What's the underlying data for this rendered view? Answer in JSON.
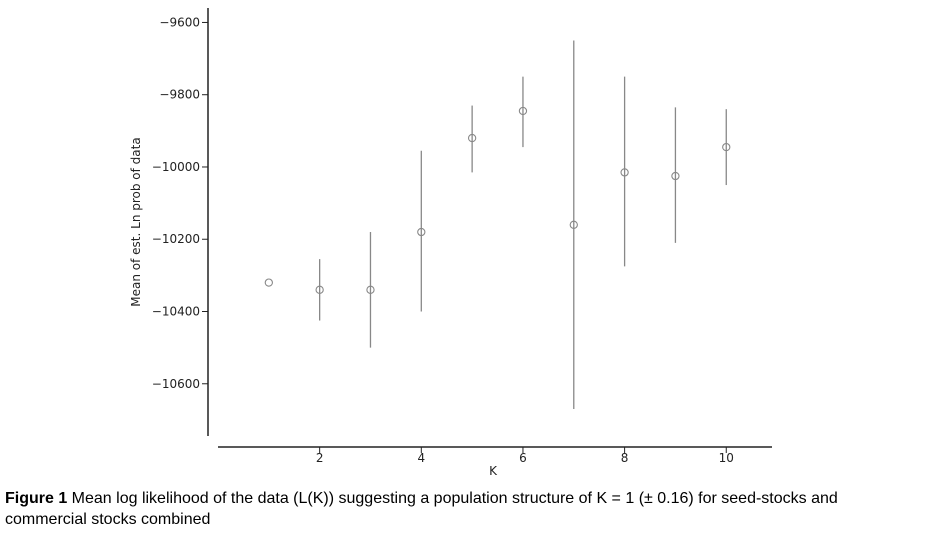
{
  "chart_data": {
    "type": "scatter",
    "x": [
      1,
      2,
      3,
      4,
      5,
      6,
      7,
      8,
      9,
      10
    ],
    "y": [
      -10320,
      -10340,
      -10340,
      -10180,
      -9920,
      -9845,
      -10160,
      -10015,
      -10025,
      -9945
    ],
    "error_low": [
      -10320,
      -10425,
      -10500,
      -10400,
      -10015,
      -9945,
      -10670,
      -10275,
      -10210,
      -10050
    ],
    "error_high": [
      -10320,
      -10255,
      -10180,
      -9955,
      -9830,
      -9750,
      -9650,
      -9750,
      -9835,
      -9840
    ],
    "xlabel": "K",
    "ylabel": "Mean of est. Ln prob of data",
    "xlim": [
      0.0,
      10.9
    ],
    "ylim": [
      -10775,
      -9560
    ],
    "xticks": [
      2,
      4,
      6,
      8,
      10
    ],
    "xtick_labels": [
      "2",
      "4",
      "6",
      "8",
      "10"
    ],
    "yticks": [
      -9600,
      -9800,
      -10000,
      -10200,
      -10400,
      -10600
    ],
    "ytick_labels": [
      "−9600",
      "−9800",
      "−10000",
      "−10200",
      "−10400",
      "−10600"
    ],
    "grid": false,
    "marker_color": "#888888",
    "axis_color": "#222222"
  },
  "caption": {
    "label": "Figure 1",
    "text": " Mean log likelihood of the data (L(K)) suggesting a population structure of K = 1 (± 0.16) for seed-stocks and commercial stocks combined"
  }
}
